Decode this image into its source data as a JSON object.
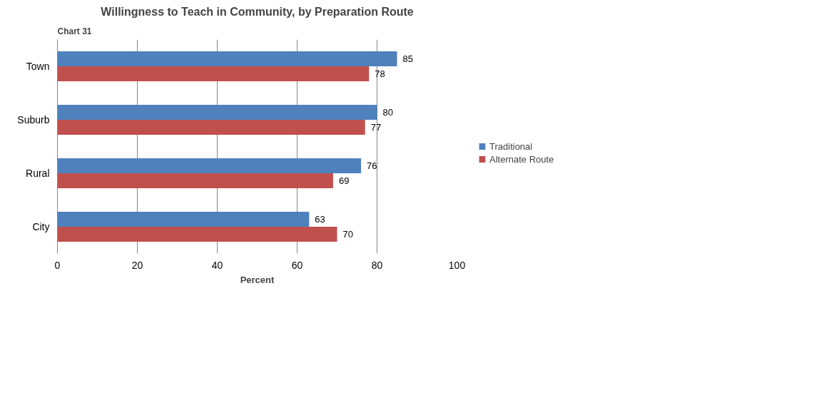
{
  "chart_data": {
    "type": "bar",
    "orientation": "horizontal",
    "title": "Willingness to Teach in Community, by Preparation Route",
    "xlabel": "Percent",
    "annotations": [
      "Chart 31"
    ],
    "categories": [
      "Town",
      "Suburb",
      "Rural",
      "City"
    ],
    "series": [
      {
        "name": "Traditional",
        "color": "#4f81bd",
        "values": [
          85,
          80,
          76,
          63
        ]
      },
      {
        "name": "Alternate Route",
        "color": "#c0504d",
        "values": [
          78,
          77,
          69,
          70
        ]
      }
    ],
    "xlim": [
      0,
      100
    ],
    "xticks": [
      0,
      20,
      40,
      60,
      80,
      100
    ],
    "grid": "x",
    "legend": "right",
    "data_labels": true
  }
}
